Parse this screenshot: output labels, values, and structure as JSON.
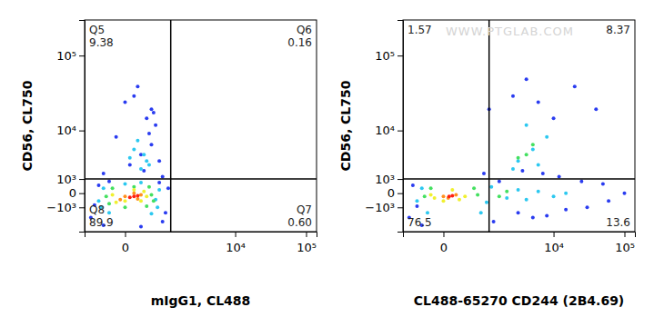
{
  "chart_data": [
    {
      "type": "scatter",
      "x_label": "mIgG1, CL488",
      "y_label": "CD56, CL750",
      "log": true,
      "xlim": [
        -800,
        140000
      ],
      "ylim": [
        -4000,
        280000
      ],
      "xticks": [
        0,
        {
          "value": 10000,
          "label": "10⁴"
        },
        {
          "value": 100000,
          "label": "10⁵"
        }
      ],
      "yticks": [
        {
          "value": -1000,
          "label": "−10³"
        },
        0,
        {
          "value": 1000,
          "label": "10³"
        },
        {
          "value": 10000,
          "label": "10⁴"
        },
        {
          "value": 100000,
          "label": "10⁵"
        }
      ],
      "quadrant": {
        "x": 1000,
        "y": 1000
      },
      "quadrant_labels": {
        "top_left": {
          "name": "Q5",
          "value": 9.38
        },
        "top_right": {
          "name": "Q6",
          "value": 0.16
        },
        "bottom_left": {
          "name": "Q8",
          "value": 89.9
        },
        "bottom_right": {
          "name": "Q7",
          "value": 0.6,
          "label": "0.60"
        }
      },
      "series": [
        {
          "color": "#2a3cf0",
          "x": [
            -600,
            -400,
            -300,
            700,
            900,
            800,
            -500,
            600,
            200,
            -200,
            400,
            100,
            300,
            500,
            0,
            -100,
            200,
            600,
            400,
            150,
            350,
            50,
            250,
            700,
            -300,
            450
          ],
          "y": [
            -2000,
            500,
            -3000,
            -2500,
            300,
            -1500,
            -800,
            700,
            -3200,
            800,
            20000,
            30000,
            15000,
            12000,
            25000,
            8000,
            4000,
            3000,
            6000,
            40000,
            9000,
            2500,
            1800,
            1200,
            1500,
            18000
          ]
        },
        {
          "color": "#2cc8f0",
          "x": [
            -400,
            -300,
            500,
            600,
            -200,
            400,
            0,
            200,
            300,
            100,
            250,
            150,
            350,
            50,
            200,
            -350,
            550
          ],
          "y": [
            -500,
            300,
            -400,
            200,
            -1500,
            -1600,
            600,
            700,
            3000,
            5000,
            4000,
            7000,
            2500,
            3500,
            2000,
            -1000,
            -1000
          ]
        },
        {
          "color": "#44e060",
          "x": [
            -250,
            400,
            -150,
            350,
            0,
            300,
            100,
            -200,
            450
          ],
          "y": [
            -200,
            -100,
            300,
            400,
            -1000,
            -900,
            400,
            -700,
            -500
          ]
        },
        {
          "color": "#f0f030",
          "x": [
            -150,
            300,
            100,
            0,
            250,
            -100,
            200
          ],
          "y": [
            -100,
            -200,
            200,
            -500,
            100,
            -600,
            -500
          ]
        },
        {
          "color": "#ff9020",
          "x": [
            0,
            200,
            100,
            -50,
            150
          ],
          "y": [
            -200,
            -100,
            0,
            -400,
            -350
          ]
        },
        {
          "color": "#ff2010",
          "x": [
            100,
            50,
            150
          ],
          "y": [
            -200,
            -250,
            -150
          ]
        }
      ]
    },
    {
      "type": "scatter",
      "x_label": "CL488-65270 CD244 (2B4.69)",
      "y_label": "CD56, CL750",
      "log": true,
      "watermark": "WWW.PTGLAB.COM",
      "xlim": [
        -800,
        140000
      ],
      "ylim": [
        -4000,
        280000
      ],
      "xticks": [
        0,
        {
          "value": 10000,
          "label": "10⁴"
        },
        {
          "value": 100000,
          "label": "10⁵"
        }
      ],
      "yticks": [
        {
          "value": -1000,
          "label": "−10³"
        },
        0,
        {
          "value": 1000,
          "label": "10³"
        },
        {
          "value": 10000,
          "label": "10⁴"
        },
        {
          "value": 100000,
          "label": "10⁵"
        }
      ],
      "quadrant": {
        "x": 1000,
        "y": 1000
      },
      "quadrant_labels": {
        "top_left": {
          "value": 1.57
        },
        "top_right": {
          "value": 8.37
        },
        "bottom_left": {
          "value": 76.5
        },
        "bottom_right": {
          "value": 13.6
        }
      },
      "series": [
        {
          "color": "#2a3cf0",
          "x": [
            -600,
            -500,
            1200,
            1500,
            3000,
            5000,
            8000,
            15000,
            30000,
            60000,
            100000,
            20000,
            40000,
            2500,
            4000,
            6000,
            10000,
            -300,
            800,
            1000,
            12000,
            25000,
            3500,
            7000,
            50000,
            -400
          ],
          "y": [
            -2000,
            500,
            -2500,
            800,
            -1500,
            -2000,
            -1800,
            -1200,
            -1000,
            -500,
            0,
            40000,
            20000,
            30000,
            50000,
            25000,
            15000,
            -3000,
            1500,
            20000,
            1200,
            800,
            1800,
            1500,
            600,
            -900
          ]
        },
        {
          "color": "#2cc8f0",
          "x": [
            -400,
            -300,
            900,
            1100,
            2000,
            3000,
            4000,
            6000,
            10000,
            15000,
            3000,
            5000,
            8000,
            4000,
            6000,
            2500,
            -200,
            700
          ],
          "y": [
            -500,
            300,
            -600,
            400,
            -300,
            200,
            -400,
            100,
            -200,
            0,
            3000,
            5000,
            8000,
            12000,
            2500,
            2000,
            -1500,
            -1500
          ]
        },
        {
          "color": "#44e060",
          "x": [
            -250,
            600,
            -150,
            500,
            1500,
            2000,
            4000,
            5000,
            3000
          ],
          "y": [
            -200,
            -100,
            300,
            300,
            -200,
            100,
            4000,
            6000,
            3500
          ]
        },
        {
          "color": "#f0f030",
          "x": [
            -150,
            300,
            100,
            0,
            200,
            -100
          ],
          "y": [
            -100,
            -200,
            200,
            -500,
            -400,
            -300
          ]
        },
        {
          "color": "#ff9020",
          "x": [
            0,
            150,
            50
          ],
          "y": [
            -200,
            -100,
            -300
          ]
        },
        {
          "color": "#ff2010",
          "x": [
            60,
            100
          ],
          "y": [
            -200,
            -150
          ]
        }
      ]
    }
  ]
}
